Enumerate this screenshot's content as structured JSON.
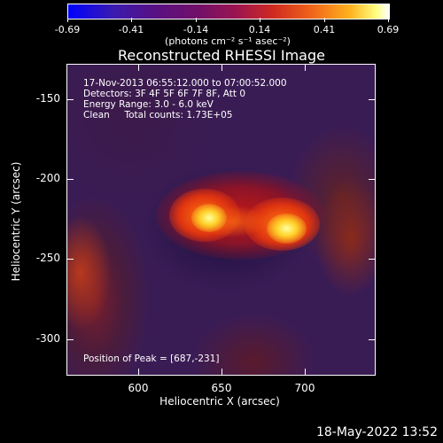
{
  "colorbar": {
    "ticks": [
      "-0.69",
      "-0.41",
      "-0.14",
      "0.14",
      "0.41",
      "0.69"
    ],
    "units": "(photons cm⁻² s⁻¹ asec⁻²)"
  },
  "title": "Reconstructed RHESSI Image",
  "annotation": {
    "line1": "17-Nov-2013 06:55:12.000 to 07:00:52.000",
    "line2": "Detectors: 3F 4F 5F 6F 7F 8F, Att 0",
    "line3": "Energy Range: 3.0 - 6.0 keV",
    "line4": "Clean     Total counts: 1.73E+05",
    "peak": "Position of Peak = [687,-231]"
  },
  "axes": {
    "xlabel": "Heliocentric X (arcsec)",
    "ylabel": "Heliocentric Y (arcsec)",
    "xticks": [
      "600",
      "650",
      "700"
    ],
    "yticks": [
      "-150",
      "-200",
      "-250",
      "-300"
    ]
  },
  "timestamp": "18-May-2022 13:52"
}
